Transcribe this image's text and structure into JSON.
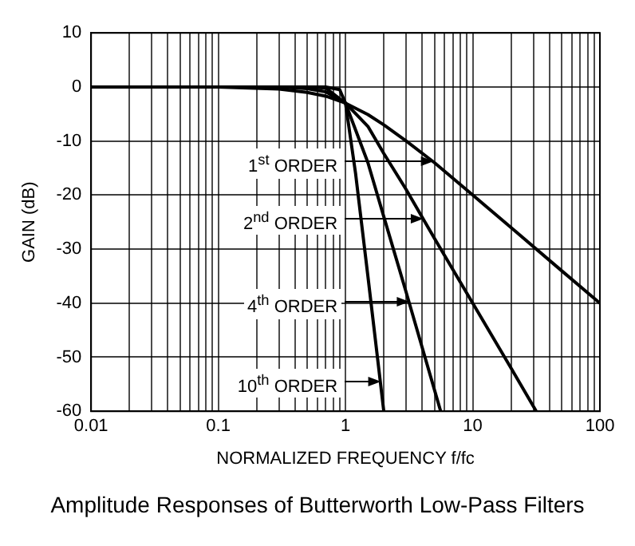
{
  "chart_data": {
    "type": "line",
    "title": "Amplitude Responses of Butterworth Low-Pass Filters",
    "xlabel": "NORMALIZED FREQUENCY f/fc",
    "ylabel": "GAIN (dB)",
    "log": "x",
    "grid": true,
    "marker": "none",
    "line_style": "solid",
    "xlim": [
      0.01,
      100
    ],
    "ylim": [
      -60,
      10
    ],
    "xticks": [
      0.01,
      {
        "value": 0.02,
        "label": null
      },
      {
        "value": 0.03,
        "label": null
      },
      {
        "value": 0.04,
        "label": null
      },
      {
        "value": 0.05,
        "label": null
      },
      {
        "value": 0.06,
        "label": null
      },
      {
        "value": 0.07,
        "label": null
      },
      {
        "value": 0.08,
        "label": null
      },
      {
        "value": 0.09,
        "label": null
      },
      0.1,
      {
        "value": 0.2,
        "label": null
      },
      {
        "value": 0.3,
        "label": null
      },
      {
        "value": 0.4,
        "label": null
      },
      {
        "value": 0.5,
        "label": null
      },
      {
        "value": 0.6,
        "label": null
      },
      {
        "value": 0.7,
        "label": null
      },
      {
        "value": 0.8,
        "label": null
      },
      {
        "value": 0.9,
        "label": null
      },
      1,
      {
        "value": 2,
        "label": null
      },
      {
        "value": 3,
        "label": null
      },
      {
        "value": 4,
        "label": null
      },
      {
        "value": 5,
        "label": null
      },
      {
        "value": 6,
        "label": null
      },
      {
        "value": 7,
        "label": null
      },
      {
        "value": 8,
        "label": null
      },
      {
        "value": 9,
        "label": null
      },
      10,
      {
        "value": 20,
        "label": null
      },
      {
        "value": 30,
        "label": null
      },
      {
        "value": 40,
        "label": null
      },
      {
        "value": 50,
        "label": null
      },
      {
        "value": 60,
        "label": null
      },
      {
        "value": 70,
        "label": null
      },
      {
        "value": 80,
        "label": null
      },
      {
        "value": 90,
        "label": null
      },
      100
    ],
    "yticks": [
      -60,
      -50,
      -40,
      -30,
      -20,
      -10,
      0,
      10
    ],
    "series": [
      {
        "color": "#000000",
        "x": [
          0.01,
          0.1,
          0.3,
          0.5,
          0.7,
          1,
          1.5,
          2,
          3,
          5,
          10,
          20,
          50,
          100
        ],
        "values": [
          0,
          0,
          -0.4,
          -1,
          -1.7,
          -3,
          -5.1,
          -7,
          -10,
          -14,
          -20,
          -26,
          -34,
          -40
        ]
      },
      {
        "color": "#000000",
        "x": [
          0.01,
          0.1,
          0.3,
          0.5,
          0.7,
          1,
          1.5,
          2,
          3,
          5,
          10,
          20,
          31.6
        ],
        "values": [
          0,
          0,
          0,
          -0.3,
          -0.9,
          -3,
          -7.3,
          -12.3,
          -19,
          -28,
          -40,
          -52,
          -60
        ]
      },
      {
        "color": "#000000",
        "x": [
          0.01,
          0.1,
          0.3,
          0.5,
          0.7,
          1,
          1.5,
          2,
          3,
          5.6
        ],
        "values": [
          0,
          0,
          0,
          0,
          -0.2,
          -3,
          -14,
          -24,
          -38,
          -60
        ]
      },
      {
        "color": "#000000",
        "x": [
          0.01,
          0.1,
          0.3,
          0.5,
          0.7,
          0.9,
          1,
          1.2,
          1.5,
          2
        ],
        "values": [
          0,
          0,
          0,
          0,
          0,
          -0.5,
          -3,
          -16,
          -35,
          -60
        ]
      }
    ],
    "annotations": [
      "1$^{st}$ ORDER",
      "2$^{nd}$ ORDER",
      "4$^{th}$ ORDER",
      "10$^{th}$ ORDER"
    ]
  }
}
